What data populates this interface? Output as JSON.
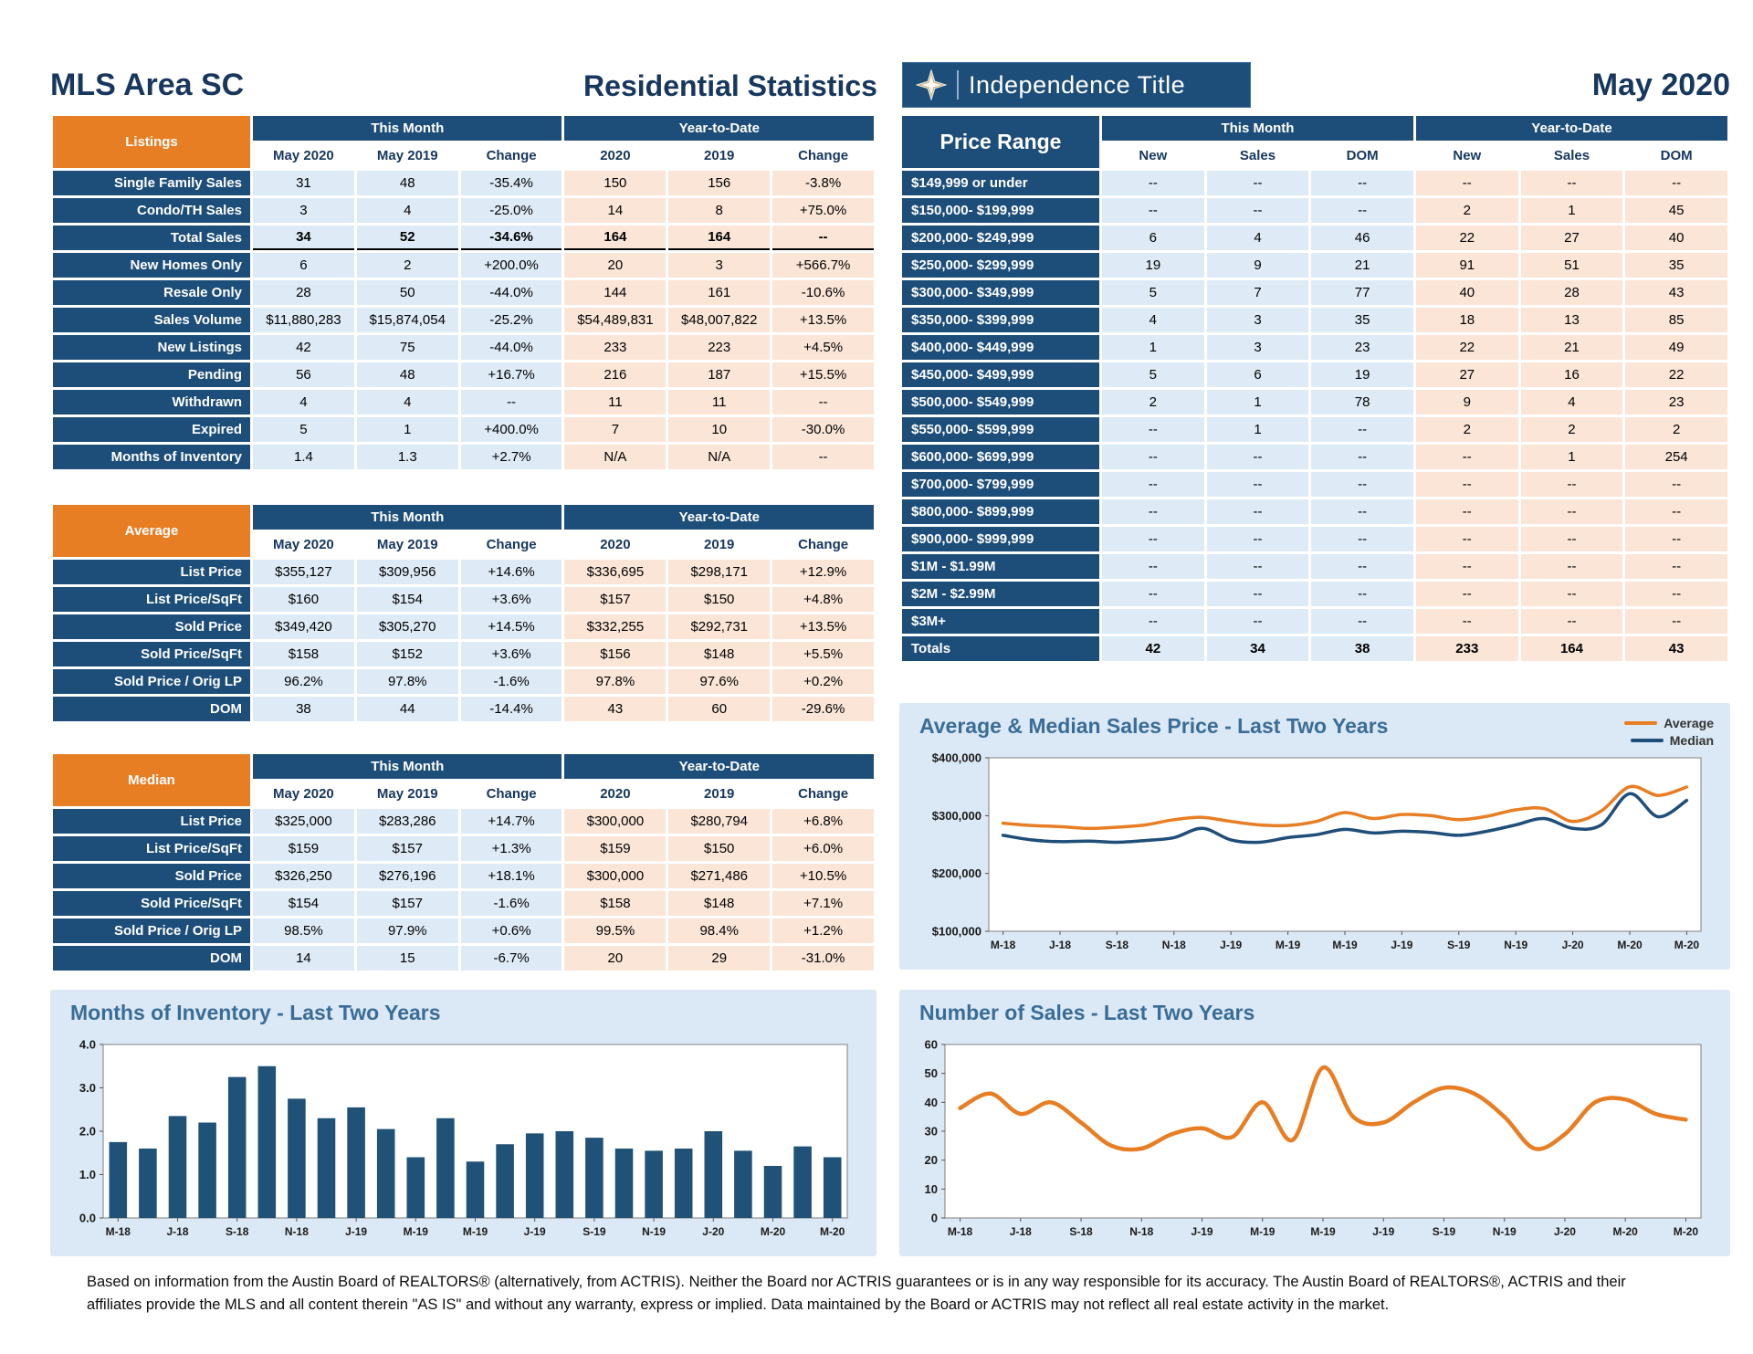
{
  "header": {
    "area_title": "MLS Area SC",
    "report_title": "Residential Statistics",
    "logo_text": "Independence Title",
    "period": "May 2020"
  },
  "tables": {
    "listings": {
      "section_label": "Listings",
      "group_headers": [
        "This Month",
        "Year-to-Date"
      ],
      "col_headers": [
        "May 2020",
        "May 2019",
        "Change",
        "2020",
        "2019",
        "Change"
      ],
      "rows": [
        {
          "label": "Single Family Sales",
          "values": [
            "31",
            "48",
            "-35.4%",
            "150",
            "156",
            "-3.8%"
          ]
        },
        {
          "label": "Condo/TH Sales",
          "values": [
            "3",
            "4",
            "-25.0%",
            "14",
            "8",
            "+75.0%"
          ]
        },
        {
          "label": "Total Sales",
          "values": [
            "34",
            "52",
            "-34.6%",
            "164",
            "164",
            "--"
          ],
          "bold": true,
          "underline": true
        },
        {
          "label": "New Homes Only",
          "values": [
            "6",
            "2",
            "+200.0%",
            "20",
            "3",
            "+566.7%"
          ]
        },
        {
          "label": "Resale Only",
          "values": [
            "28",
            "50",
            "-44.0%",
            "144",
            "161",
            "-10.6%"
          ]
        },
        {
          "label": "Sales Volume",
          "values": [
            "$11,880,283",
            "$15,874,054",
            "-25.2%",
            "$54,489,831",
            "$48,007,822",
            "+13.5%"
          ]
        },
        {
          "label": "New Listings",
          "values": [
            "42",
            "75",
            "-44.0%",
            "233",
            "223",
            "+4.5%"
          ]
        },
        {
          "label": "Pending",
          "values": [
            "56",
            "48",
            "+16.7%",
            "216",
            "187",
            "+15.5%"
          ]
        },
        {
          "label": "Withdrawn",
          "values": [
            "4",
            "4",
            "--",
            "11",
            "11",
            "--"
          ]
        },
        {
          "label": "Expired",
          "values": [
            "5",
            "1",
            "+400.0%",
            "7",
            "10",
            "-30.0%"
          ]
        },
        {
          "label": "Months of Inventory",
          "values": [
            "1.4",
            "1.3",
            "+2.7%",
            "N/A",
            "N/A",
            "--"
          ]
        }
      ]
    },
    "average": {
      "section_label": "Average",
      "group_headers": [
        "This Month",
        "Year-to-Date"
      ],
      "col_headers": [
        "May 2020",
        "May 2019",
        "Change",
        "2020",
        "2019",
        "Change"
      ],
      "rows": [
        {
          "label": "List Price",
          "values": [
            "$355,127",
            "$309,956",
            "+14.6%",
            "$336,695",
            "$298,171",
            "+12.9%"
          ]
        },
        {
          "label": "List Price/SqFt",
          "values": [
            "$160",
            "$154",
            "+3.6%",
            "$157",
            "$150",
            "+4.8%"
          ]
        },
        {
          "label": "Sold Price",
          "values": [
            "$349,420",
            "$305,270",
            "+14.5%",
            "$332,255",
            "$292,731",
            "+13.5%"
          ]
        },
        {
          "label": "Sold Price/SqFt",
          "values": [
            "$158",
            "$152",
            "+3.6%",
            "$156",
            "$148",
            "+5.5%"
          ]
        },
        {
          "label": "Sold Price / Orig LP",
          "values": [
            "96.2%",
            "97.8%",
            "-1.6%",
            "97.8%",
            "97.6%",
            "+0.2%"
          ]
        },
        {
          "label": "DOM",
          "values": [
            "38",
            "44",
            "-14.4%",
            "43",
            "60",
            "-29.6%"
          ]
        }
      ]
    },
    "median": {
      "section_label": "Median",
      "group_headers": [
        "This Month",
        "Year-to-Date"
      ],
      "col_headers": [
        "May 2020",
        "May 2019",
        "Change",
        "2020",
        "2019",
        "Change"
      ],
      "rows": [
        {
          "label": "List Price",
          "values": [
            "$325,000",
            "$283,286",
            "+14.7%",
            "$300,000",
            "$280,794",
            "+6.8%"
          ]
        },
        {
          "label": "List Price/SqFt",
          "values": [
            "$159",
            "$157",
            "+1.3%",
            "$159",
            "$150",
            "+6.0%"
          ]
        },
        {
          "label": "Sold Price",
          "values": [
            "$326,250",
            "$276,196",
            "+18.1%",
            "$300,000",
            "$271,486",
            "+10.5%"
          ]
        },
        {
          "label": "Sold Price/SqFt",
          "values": [
            "$154",
            "$157",
            "-1.6%",
            "$158",
            "$148",
            "+7.1%"
          ]
        },
        {
          "label": "Sold Price / Orig LP",
          "values": [
            "98.5%",
            "97.9%",
            "+0.6%",
            "99.5%",
            "98.4%",
            "+1.2%"
          ]
        },
        {
          "label": "DOM",
          "values": [
            "14",
            "15",
            "-6.7%",
            "20",
            "29",
            "-31.0%"
          ]
        }
      ]
    },
    "price_range": {
      "section_label": "Price Range",
      "group_headers": [
        "This Month",
        "Year-to-Date"
      ],
      "col_headers": [
        "New",
        "Sales",
        "DOM",
        "New",
        "Sales",
        "DOM"
      ],
      "rows": [
        {
          "label": "$149,999 or under",
          "values": [
            "--",
            "--",
            "--",
            "--",
            "--",
            "--"
          ]
        },
        {
          "label": "$150,000- $199,999",
          "values": [
            "--",
            "--",
            "--",
            "2",
            "1",
            "45"
          ]
        },
        {
          "label": "$200,000- $249,999",
          "values": [
            "6",
            "4",
            "46",
            "22",
            "27",
            "40"
          ]
        },
        {
          "label": "$250,000- $299,999",
          "values": [
            "19",
            "9",
            "21",
            "91",
            "51",
            "35"
          ]
        },
        {
          "label": "$300,000- $349,999",
          "values": [
            "5",
            "7",
            "77",
            "40",
            "28",
            "43"
          ]
        },
        {
          "label": "$350,000- $399,999",
          "values": [
            "4",
            "3",
            "35",
            "18",
            "13",
            "85"
          ]
        },
        {
          "label": "$400,000- $449,999",
          "values": [
            "1",
            "3",
            "23",
            "22",
            "21",
            "49"
          ]
        },
        {
          "label": "$450,000- $499,999",
          "values": [
            "5",
            "6",
            "19",
            "27",
            "16",
            "22"
          ]
        },
        {
          "label": "$500,000- $549,999",
          "values": [
            "2",
            "1",
            "78",
            "9",
            "4",
            "23"
          ]
        },
        {
          "label": "$550,000- $599,999",
          "values": [
            "--",
            "1",
            "--",
            "2",
            "2",
            "2"
          ]
        },
        {
          "label": "$600,000- $699,999",
          "values": [
            "--",
            "--",
            "--",
            "--",
            "1",
            "254"
          ]
        },
        {
          "label": "$700,000- $799,999",
          "values": [
            "--",
            "--",
            "--",
            "--",
            "--",
            "--"
          ]
        },
        {
          "label": "$800,000- $899,999",
          "values": [
            "--",
            "--",
            "--",
            "--",
            "--",
            "--"
          ]
        },
        {
          "label": "$900,000- $999,999",
          "values": [
            "--",
            "--",
            "--",
            "--",
            "--",
            "--"
          ]
        },
        {
          "label": "$1M - $1.99M",
          "values": [
            "--",
            "--",
            "--",
            "--",
            "--",
            "--"
          ]
        },
        {
          "label": "$2M - $2.99M",
          "values": [
            "--",
            "--",
            "--",
            "--",
            "--",
            "--"
          ]
        },
        {
          "label": "$3M+",
          "values": [
            "--",
            "--",
            "--",
            "--",
            "--",
            "--"
          ]
        },
        {
          "label": "Totals",
          "values": [
            "42",
            "34",
            "38",
            "233",
            "164",
            "43"
          ],
          "totals": true
        }
      ]
    }
  },
  "chart_data": [
    {
      "id": "price",
      "type": "line",
      "title": "Average & Median Sales Price - Last Two Years",
      "x_labels": [
        "M-18",
        "J-18",
        "S-18",
        "N-18",
        "J-19",
        "M-19",
        "M-19",
        "J-19",
        "S-19",
        "N-19",
        "J-20",
        "M-20",
        "M-20"
      ],
      "label_every": 2,
      "series": [
        {
          "name": "Average",
          "color": "#e87e23",
          "values": [
            287000,
            283000,
            281000,
            278000,
            280000,
            284000,
            293000,
            297000,
            290000,
            284000,
            283000,
            290000,
            305270,
            295000,
            302000,
            300000,
            293000,
            299000,
            310000,
            312000,
            290000,
            308000,
            350000,
            335000,
            349420
          ]
        },
        {
          "name": "Median",
          "color": "#1f4e79",
          "values": [
            266000,
            258000,
            255000,
            256000,
            254000,
            257000,
            262000,
            278000,
            258000,
            254000,
            262000,
            267000,
            276196,
            270000,
            273000,
            271000,
            266000,
            273000,
            284000,
            295000,
            278000,
            284000,
            338000,
            298000,
            326250
          ]
        }
      ],
      "ylim": [
        100000,
        400000
      ],
      "yticks": [
        100000,
        200000,
        300000,
        400000
      ],
      "ytick_labels": [
        "$100,000",
        "$200,000",
        "$300,000",
        "$400,000"
      ],
      "legend_position": "top-right",
      "grid": false
    },
    {
      "id": "inventory",
      "type": "bar",
      "title": "Months of Inventory - Last Two Years",
      "x_labels": [
        "M-18",
        "J-18",
        "S-18",
        "N-18",
        "J-19",
        "M-19",
        "M-19",
        "J-19",
        "S-19",
        "N-19",
        "J-20",
        "M-20",
        "M-20"
      ],
      "label_every": 2,
      "values": [
        1.75,
        1.6,
        2.35,
        2.2,
        3.25,
        3.5,
        2.75,
        2.3,
        2.55,
        2.05,
        1.4,
        2.3,
        1.3,
        1.7,
        1.95,
        2.0,
        1.85,
        1.6,
        1.55,
        1.6,
        2.0,
        1.55,
        1.2,
        1.65,
        1.4
      ],
      "bar_color": "#1f5276",
      "ylim": [
        0,
        4
      ],
      "yticks": [
        0,
        1,
        2,
        3,
        4
      ],
      "ytick_labels": [
        "0.0",
        "1.0",
        "2.0",
        "3.0",
        "4.0"
      ],
      "legend_position": "none",
      "grid": false
    },
    {
      "id": "sales",
      "type": "line",
      "title": "Number of Sales - Last Two Years",
      "x_labels": [
        "M-18",
        "J-18",
        "S-18",
        "N-18",
        "J-19",
        "M-19",
        "M-19",
        "J-19",
        "S-19",
        "N-19",
        "J-20",
        "M-20",
        "M-20"
      ],
      "label_every": 2,
      "series": [
        {
          "name": "Sales",
          "color": "#e87e23",
          "values": [
            38,
            43,
            36,
            40,
            33,
            25,
            24,
            29,
            31,
            28,
            40,
            27,
            52,
            35,
            33,
            40,
            45,
            43,
            35,
            24,
            29,
            40,
            41,
            36,
            34
          ]
        }
      ],
      "ylim": [
        0,
        60
      ],
      "yticks": [
        0,
        10,
        20,
        30,
        40,
        50,
        60
      ],
      "ytick_labels": [
        "0",
        "10",
        "20",
        "30",
        "40",
        "50",
        "60"
      ],
      "legend_position": "none",
      "grid": false
    }
  ],
  "footer": {
    "disclaimer": "Based on information from the Austin Board of REALTORS® (alternatively, from ACTRIS). Neither the Board nor ACTRIS guarantees or is in any way responsible for its accuracy. The Austin Board of REALTORS®, ACTRIS and their affiliates provide the MLS and all content therein \"AS IS\" and without any warranty, express or implied. Data maintained by the Board or ACTRIS may not reflect all real estate activity in the market."
  }
}
